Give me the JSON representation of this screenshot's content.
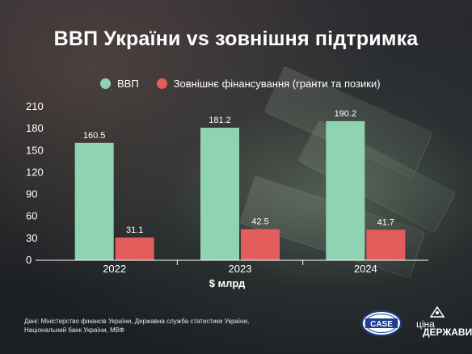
{
  "title": "ВВП України vs зовнішня підтримка",
  "legend": {
    "gdp_label": "ВВП",
    "external_label": "Зовнішнє фінансування (гранти та позики)"
  },
  "colors": {
    "gdp": "#8fd3b2",
    "external": "#e35d5d",
    "background": "#1f2327"
  },
  "chart_data": {
    "type": "bar",
    "categories": [
      "2022",
      "2023",
      "2024"
    ],
    "series": [
      {
        "name": "ВВП",
        "values": [
          160.5,
          181.2,
          190.2
        ]
      },
      {
        "name": "Зовнішнє фінансування (гранти та позики)",
        "values": [
          31.1,
          42.5,
          41.7
        ]
      }
    ],
    "xlabel": "$ млрд",
    "ylabel": "",
    "ylim": [
      0,
      210
    ],
    "yticks": [
      0,
      30,
      60,
      90,
      120,
      150,
      180,
      210
    ],
    "data_labels": [
      [
        "160.5",
        "181.2",
        "190.2"
      ],
      [
        "31.1",
        "42.5",
        "41.7"
      ]
    ],
    "legend_position": "top-left",
    "grid": false
  },
  "footer": {
    "source": "Дані: Міністерство фінансів України, Державна служба статистики України, Національний банк України, МВФ",
    "case_logo_text": "CASE",
    "cina_logo_line1": "ціна",
    "cina_logo_line2": "ДЕРЖАВИ"
  },
  "icons": {
    "case_logo": "case-logo-icon",
    "cina_logo": "cina-derzhavy-logo-icon"
  }
}
